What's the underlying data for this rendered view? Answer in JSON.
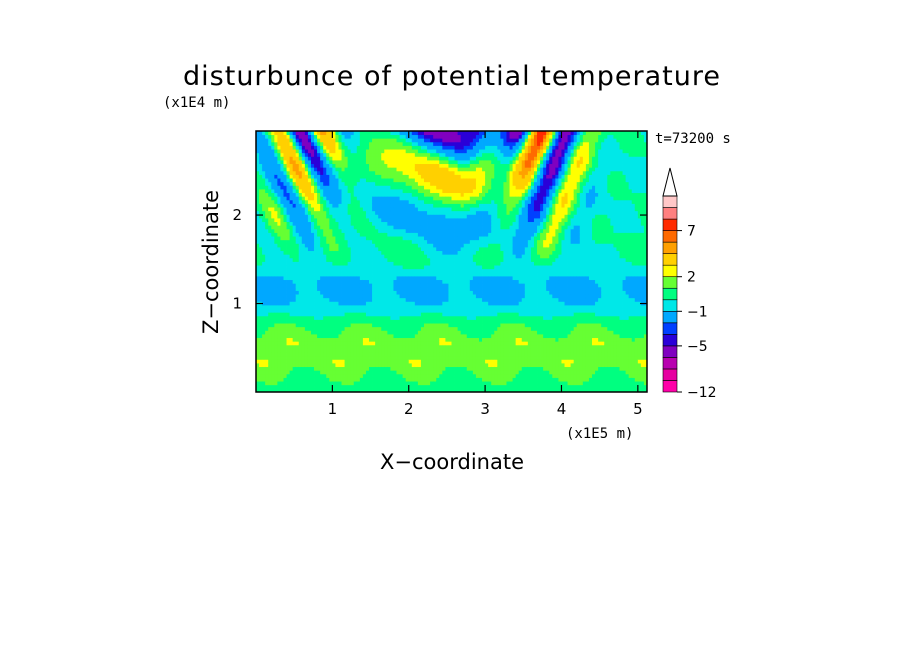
{
  "chart_data": {
    "type": "heatmap",
    "title": "disturbunce of potential temperature",
    "xlabel": "X−coordinate",
    "ylabel": "Z−coordinate",
    "x_scale_label": "(x1E5 m)",
    "y_scale_label": "(x1E4 m)",
    "time_label": "t=73200 s",
    "xlim": [
      0,
      5.12
    ],
    "ylim": [
      0,
      2.95
    ],
    "x_ticks": [
      1,
      2,
      3,
      4,
      5
    ],
    "y_ticks": [
      1,
      2
    ],
    "colorbar": {
      "levels": [
        -12,
        -11,
        -9,
        -7,
        -5,
        -4,
        -3,
        -1,
        0,
        1,
        2,
        3,
        5,
        6,
        7,
        8,
        9,
        10
      ],
      "colors": [
        "#ff00a8",
        "#e600a0",
        "#b800b0",
        "#8000c0",
        "#2a00d8",
        "#0040ff",
        "#00a8ff",
        "#00e8e8",
        "#00ff80",
        "#66ff33",
        "#ffff00",
        "#ffd000",
        "#ffa000",
        "#ff6a00",
        "#ff2a00",
        "#ff8080",
        "#ffc8c8"
      ],
      "tick_labels": [
        "7",
        "2",
        "−1",
        "−5",
        "−12"
      ],
      "tick_values": [
        7,
        2,
        -1,
        -5,
        -12
      ]
    },
    "grid": false,
    "legend": "none"
  }
}
